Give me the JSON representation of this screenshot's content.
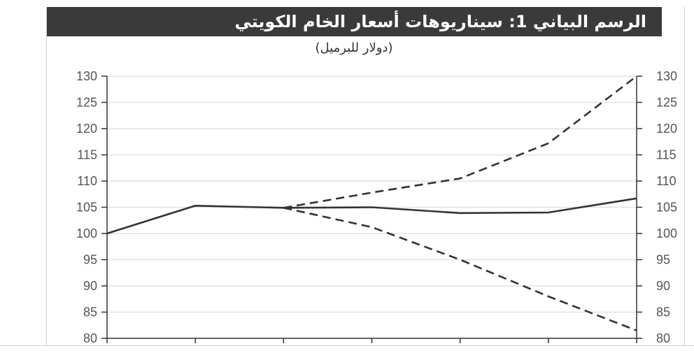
{
  "title": "الرسم البياني 1: سيناريوهات أسعار الخام الكويتي",
  "subtitle": "(دولار للبرميل)",
  "colors": {
    "title_bg": "#3a3a3a",
    "line": "#333333",
    "grid": "#dbe4ee"
  },
  "chart_data": {
    "type": "line",
    "title": "الرسم البياني 1: سيناريوهات أسعار الخام الكويتي",
    "subtitle": "(دولار للبرميل)",
    "xlabel": "",
    "ylabel": "",
    "ylim": [
      80,
      130
    ],
    "y_ticks": [
      "80",
      "85",
      "90",
      "95",
      "100",
      "105",
      "110",
      "115",
      "120",
      "125",
      "130"
    ],
    "y_axis": "both left and right",
    "grid": true,
    "x": [
      0,
      1,
      2,
      3,
      4,
      5,
      6
    ],
    "series": [
      {
        "style": "solid",
        "x": [
          0,
          1,
          2,
          3,
          4,
          5,
          6
        ],
        "values": [
          100,
          105.3,
          104.9,
          105.0,
          103.9,
          104.0,
          106.7
        ]
      },
      {
        "style": "dashed",
        "x": [
          2,
          3,
          4,
          5,
          6
        ],
        "values": [
          104.9,
          107.8,
          110.5,
          117.2,
          130.0
        ]
      },
      {
        "style": "dashed",
        "x": [
          2,
          3,
          4,
          5,
          6
        ],
        "values": [
          104.9,
          101.2,
          95.0,
          88.0,
          81.5
        ]
      }
    ]
  }
}
